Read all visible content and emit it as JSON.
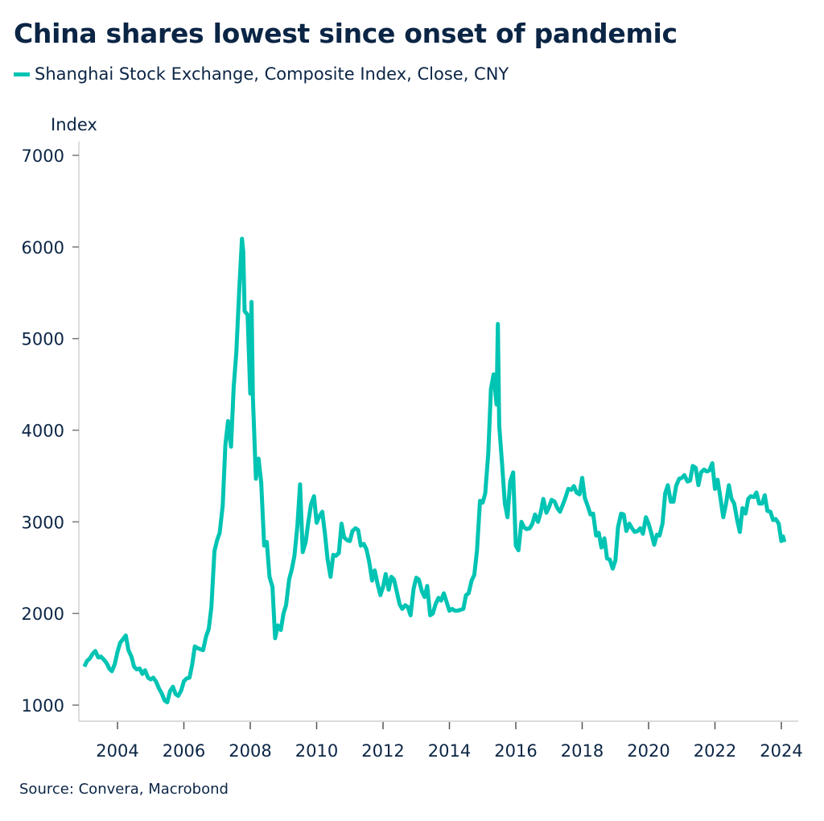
{
  "title": "China shares lowest since onset of pandemic",
  "source": "Source: Convera, Macrobond",
  "chart_data": {
    "type": "line",
    "title": "China shares lowest since onset of pandemic",
    "xlabel": "",
    "ylabel": "Index",
    "ylim": [
      1000,
      7000
    ],
    "yticks": [
      1000,
      2000,
      3000,
      4000,
      5000,
      6000,
      7000
    ],
    "xlim": [
      2002.9,
      2024.5
    ],
    "xticks": [
      2004,
      2006,
      2008,
      2010,
      2012,
      2014,
      2016,
      2018,
      2020,
      2022,
      2024
    ],
    "xtick_labels": [
      "2004",
      "2006",
      "2008",
      "2010",
      "2012",
      "2014",
      "2016",
      "2018",
      "2020",
      "2022",
      "2024"
    ],
    "grid": false,
    "legend_position": "top-left",
    "series": [
      {
        "name": "Shanghai Stock Exchange, Composite Index, Close, CNY",
        "color": "#00c4b3",
        "x": [
          2003.0,
          2003.08,
          2003.17,
          2003.25,
          2003.33,
          2003.42,
          2003.5,
          2003.58,
          2003.67,
          2003.75,
          2003.83,
          2003.92,
          2004.0,
          2004.08,
          2004.17,
          2004.25,
          2004.33,
          2004.42,
          2004.5,
          2004.58,
          2004.67,
          2004.75,
          2004.83,
          2004.92,
          2005.0,
          2005.08,
          2005.17,
          2005.25,
          2005.33,
          2005.42,
          2005.5,
          2005.58,
          2005.67,
          2005.75,
          2005.83,
          2005.92,
          2006.0,
          2006.08,
          2006.17,
          2006.25,
          2006.33,
          2006.42,
          2006.5,
          2006.58,
          2006.67,
          2006.75,
          2006.83,
          2006.92,
          2007.0,
          2007.08,
          2007.17,
          2007.25,
          2007.33,
          2007.42,
          2007.5,
          2007.58,
          2007.67,
          2007.75,
          2007.79,
          2007.83,
          2007.92,
          2008.0,
          2008.04,
          2008.08,
          2008.17,
          2008.25,
          2008.33,
          2008.42,
          2008.5,
          2008.58,
          2008.67,
          2008.75,
          2008.83,
          2008.92,
          2009.0,
          2009.08,
          2009.17,
          2009.25,
          2009.33,
          2009.42,
          2009.5,
          2009.58,
          2009.67,
          2009.75,
          2009.83,
          2009.92,
          2010.0,
          2010.08,
          2010.17,
          2010.25,
          2010.33,
          2010.42,
          2010.5,
          2010.58,
          2010.67,
          2010.75,
          2010.83,
          2010.92,
          2011.0,
          2011.08,
          2011.17,
          2011.25,
          2011.33,
          2011.42,
          2011.5,
          2011.58,
          2011.67,
          2011.75,
          2011.83,
          2011.92,
          2012.0,
          2012.08,
          2012.17,
          2012.25,
          2012.33,
          2012.42,
          2012.5,
          2012.58,
          2012.67,
          2012.75,
          2012.83,
          2012.92,
          2013.0,
          2013.08,
          2013.17,
          2013.25,
          2013.33,
          2013.42,
          2013.5,
          2013.58,
          2013.67,
          2013.75,
          2013.83,
          2013.92,
          2014.0,
          2014.08,
          2014.17,
          2014.25,
          2014.33,
          2014.42,
          2014.5,
          2014.58,
          2014.67,
          2014.75,
          2014.83,
          2014.92,
          2015.0,
          2015.08,
          2015.17,
          2015.25,
          2015.33,
          2015.42,
          2015.46,
          2015.5,
          2015.58,
          2015.67,
          2015.75,
          2015.83,
          2015.92,
          2016.0,
          2016.08,
          2016.17,
          2016.25,
          2016.33,
          2016.42,
          2016.5,
          2016.58,
          2016.67,
          2016.75,
          2016.83,
          2016.92,
          2017.0,
          2017.08,
          2017.17,
          2017.25,
          2017.33,
          2017.42,
          2017.5,
          2017.58,
          2017.67,
          2017.75,
          2017.83,
          2017.92,
          2018.0,
          2018.08,
          2018.17,
          2018.25,
          2018.33,
          2018.42,
          2018.5,
          2018.58,
          2018.67,
          2018.75,
          2018.83,
          2018.92,
          2019.0,
          2019.08,
          2019.17,
          2019.25,
          2019.33,
          2019.42,
          2019.5,
          2019.58,
          2019.67,
          2019.75,
          2019.83,
          2019.92,
          2020.0,
          2020.08,
          2020.17,
          2020.25,
          2020.33,
          2020.42,
          2020.5,
          2020.58,
          2020.67,
          2020.75,
          2020.83,
          2020.92,
          2021.0,
          2021.08,
          2021.17,
          2021.25,
          2021.33,
          2021.42,
          2021.5,
          2021.58,
          2021.67,
          2021.75,
          2021.83,
          2021.92,
          2022.0,
          2022.08,
          2022.17,
          2022.25,
          2022.33,
          2022.42,
          2022.5,
          2022.58,
          2022.67,
          2022.75,
          2022.83,
          2022.92,
          2023.0,
          2023.08,
          2023.17,
          2023.25,
          2023.33,
          2023.42,
          2023.5,
          2023.58,
          2023.67,
          2023.75,
          2023.83,
          2023.92,
          2024.0,
          2024.05,
          2024.09
        ],
        "values": [
          1420,
          1480,
          1510,
          1560,
          1590,
          1520,
          1530,
          1500,
          1460,
          1400,
          1370,
          1450,
          1580,
          1680,
          1720,
          1760,
          1600,
          1530,
          1420,
          1390,
          1400,
          1340,
          1380,
          1300,
          1280,
          1300,
          1250,
          1180,
          1130,
          1050,
          1030,
          1150,
          1200,
          1120,
          1100,
          1160,
          1260,
          1290,
          1300,
          1440,
          1640,
          1620,
          1610,
          1600,
          1750,
          1830,
          2070,
          2680,
          2800,
          2880,
          3180,
          3840,
          4100,
          3820,
          4470,
          4850,
          5550,
          6090,
          5950,
          5300,
          5260,
          4400,
          5400,
          4350,
          3470,
          3690,
          3430,
          2740,
          2780,
          2400,
          2290,
          1730,
          1870,
          1820,
          2000,
          2090,
          2370,
          2480,
          2630,
          2960,
          3410,
          2670,
          2780,
          3000,
          3190,
          3280,
          2990,
          3060,
          3110,
          2870,
          2590,
          2400,
          2640,
          2630,
          2660,
          2980,
          2830,
          2800,
          2790,
          2900,
          2930,
          2910,
          2740,
          2760,
          2700,
          2570,
          2360,
          2470,
          2330,
          2200,
          2290,
          2430,
          2260,
          2400,
          2370,
          2230,
          2100,
          2050,
          2090,
          2070,
          1980,
          2270,
          2390,
          2370,
          2240,
          2180,
          2300,
          1980,
          2000,
          2100,
          2170,
          2140,
          2220,
          2120,
          2030,
          2050,
          2030,
          2030,
          2040,
          2050,
          2200,
          2220,
          2360,
          2420,
          2680,
          3230,
          3210,
          3310,
          3750,
          4450,
          4610,
          4280,
          5160,
          4050,
          3660,
          3200,
          3050,
          3440,
          3540,
          2740,
          2690,
          3000,
          2940,
          2920,
          2930,
          2980,
          3080,
          3000,
          3100,
          3250,
          3100,
          3160,
          3240,
          3220,
          3150,
          3110,
          3190,
          3270,
          3360,
          3350,
          3390,
          3320,
          3300,
          3480,
          3260,
          3170,
          3080,
          3090,
          2850,
          2880,
          2720,
          2820,
          2600,
          2590,
          2490,
          2580,
          2940,
          3090,
          3080,
          2900,
          2980,
          2930,
          2890,
          2900,
          2930,
          2870,
          3050,
          2980,
          2880,
          2750,
          2860,
          2850,
          2980,
          3310,
          3400,
          3220,
          3220,
          3390,
          3470,
          3480,
          3510,
          3440,
          3450,
          3610,
          3590,
          3400,
          3540,
          3570,
          3550,
          3560,
          3640,
          3360,
          3460,
          3250,
          3050,
          3190,
          3400,
          3250,
          3200,
          3020,
          2890,
          3150,
          3090,
          3250,
          3280,
          3270,
          3320,
          3200,
          3200,
          3290,
          3120,
          3110,
          3020,
          3030,
          2980,
          2790,
          2840,
          2780
        ]
      }
    ]
  }
}
